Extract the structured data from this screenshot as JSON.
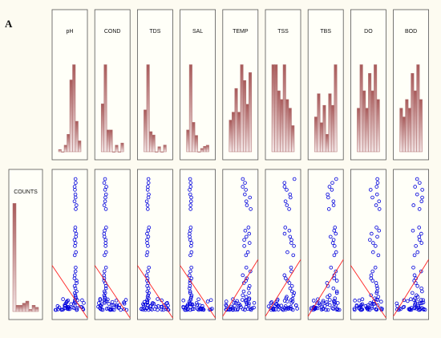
{
  "figure": {
    "panel_label": "A"
  },
  "chart_data": {
    "type": "scatter-matrix",
    "response": {
      "name": "COUNTS",
      "histogram": [
        52,
        3,
        3,
        4,
        5,
        1,
        3,
        2
      ]
    },
    "variables": [
      {
        "name": "pH",
        "histogram": [
          1,
          0,
          3,
          8,
          33,
          40,
          14,
          5
        ],
        "trend": "down"
      },
      {
        "name": "COND",
        "histogram": [
          22,
          40,
          10,
          10,
          0,
          3,
          0,
          4
        ],
        "trend": "down"
      },
      {
        "name": "TDS",
        "histogram": [
          25,
          52,
          12,
          10,
          0,
          3,
          0,
          4
        ],
        "trend": "down"
      },
      {
        "name": "SAL",
        "histogram": [
          20,
          80,
          27,
          15,
          0,
          3,
          5,
          6
        ],
        "trend": "down"
      },
      {
        "name": "TEMP",
        "histogram": [
          4,
          5,
          8,
          5,
          11,
          9,
          6,
          10
        ],
        "trend": "up"
      },
      {
        "name": "TSS",
        "histogram": [
          10,
          10,
          7,
          6,
          10,
          6,
          5,
          3
        ],
        "trend": "up"
      },
      {
        "name": "TBS",
        "histogram": [
          6,
          10,
          5,
          8,
          3,
          10,
          8,
          15
        ],
        "trend": "up"
      },
      {
        "name": "DO",
        "histogram": [
          5,
          10,
          7,
          5,
          9,
          7,
          10,
          6
        ],
        "trend": "down"
      },
      {
        "name": "BOD",
        "histogram": [
          5,
          4,
          6,
          5,
          9,
          7,
          10,
          6
        ],
        "trend": "up"
      }
    ],
    "counts_profile": [
      340,
      330,
      320,
      312,
      300,
      292,
      282,
      272,
      262,
      214,
      206,
      198,
      190,
      182,
      174,
      166,
      150,
      142,
      110,
      100,
      90,
      82,
      76,
      70,
      62,
      56,
      48,
      44,
      38,
      34,
      30,
      26,
      22,
      18,
      15,
      12,
      10,
      8,
      6,
      5,
      4,
      3,
      3,
      2,
      2,
      1,
      1,
      1,
      0,
      0,
      0,
      0,
      0
    ],
    "grid": false,
    "colors": {
      "panel_background": "#fffff8",
      "border": "#555555",
      "bar_fill_top": "#a85a5a",
      "bar_fill_bottom": "#f2e4e4",
      "point": "#0000dd",
      "trend_line": "#ff2222"
    }
  }
}
